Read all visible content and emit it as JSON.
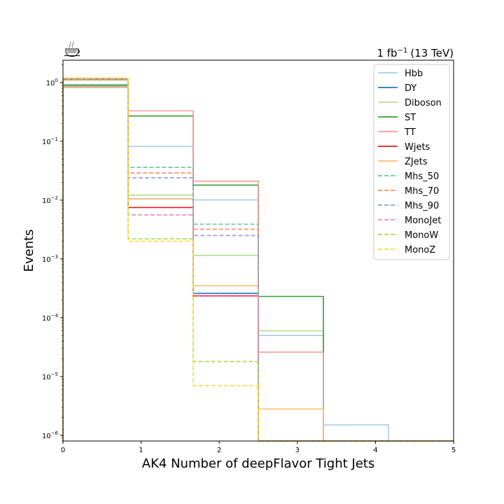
{
  "chart_data": {
    "type": "histogram",
    "xlabel": "AK4 Number of deepFlavor Tight Jets",
    "ylabel": "Events",
    "lumi_label": "1 fb",
    "lumi_exponent": "−1",
    "lumi_suffix": "(13 TeV)",
    "y_scale": "log",
    "xlim": [
      0,
      5
    ],
    "ylim": [
      8e-07,
      2.4
    ],
    "x_ticks": [
      0,
      1,
      2,
      3,
      4,
      5
    ],
    "x_tick_labels": [
      "0",
      "1",
      "2",
      "3",
      "4",
      "5"
    ],
    "y_ticks": [
      1e-06,
      1e-05,
      0.0001,
      0.001,
      0.01,
      0.1,
      1
    ],
    "y_tick_base": [
      "10",
      "10",
      "10",
      "10",
      "10",
      "10",
      "10"
    ],
    "y_tick_exponents": [
      "−6",
      "−5",
      "−4",
      "−3",
      "−2",
      "−1",
      "0"
    ],
    "bin_edges": [
      0,
      0.8333,
      1.6667,
      2.5,
      3.3333,
      4.1667,
      5.0
    ],
    "legend_position": "upper right",
    "grid": false,
    "series": [
      {
        "name": "Hbb",
        "color": "#a6cee3",
        "style": "solid",
        "values": [
          0.85,
          0.082,
          0.0101,
          5e-05,
          1.5e-06,
          0
        ]
      },
      {
        "name": "DY",
        "color": "#1f78b4",
        "style": "solid",
        "values": [
          0.9,
          0.0105,
          0.00026,
          0,
          0,
          0
        ]
      },
      {
        "name": "Diboson",
        "color": "#b2df8a",
        "style": "solid",
        "values": [
          0.82,
          0.0122,
          0.00115,
          6e-05,
          0,
          0
        ]
      },
      {
        "name": "ST",
        "color": "#33a02c",
        "style": "solid",
        "values": [
          0.91,
          0.27,
          0.018,
          0.00023,
          0,
          0
        ]
      },
      {
        "name": "TT",
        "color": "#fb9a99",
        "style": "solid",
        "values": [
          0.85,
          0.33,
          0.021,
          2.6e-05,
          0,
          0
        ]
      },
      {
        "name": "Wjets",
        "color": "#e31a1c",
        "style": "solid",
        "values": [
          1.15,
          0.0075,
          0.000235,
          0,
          0,
          0
        ]
      },
      {
        "name": "ZJets",
        "color": "#fdbf6f",
        "style": "solid",
        "values": [
          1.1,
          0.0105,
          0.00035,
          2.8e-06,
          0,
          0
        ]
      },
      {
        "name": "Mhs_50",
        "color": "#66c2a5",
        "style": "dashed",
        "values": [
          1.12,
          0.036,
          0.0039,
          0,
          0,
          0
        ]
      },
      {
        "name": "Mhs_70",
        "color": "#fc8d62",
        "style": "dashed",
        "values": [
          1.14,
          0.029,
          0.0032,
          0,
          0,
          0
        ]
      },
      {
        "name": "Mhs_90",
        "color": "#8da0cb",
        "style": "dashed",
        "values": [
          1.13,
          0.024,
          0.0025,
          0,
          0,
          0
        ]
      },
      {
        "name": "MonoJet",
        "color": "#e78ac3",
        "style": "dashed",
        "values": [
          1.16,
          0.0056,
          0.00024,
          0,
          0,
          0
        ]
      },
      {
        "name": "MonoW",
        "color": "#a6d854",
        "style": "dashed",
        "values": [
          1.18,
          0.0022,
          1.8e-05,
          0,
          0,
          0
        ]
      },
      {
        "name": "MonoZ",
        "color": "#ffd92f",
        "style": "dashed",
        "values": [
          1.2,
          0.002,
          7e-06,
          0,
          0,
          0
        ]
      }
    ]
  }
}
